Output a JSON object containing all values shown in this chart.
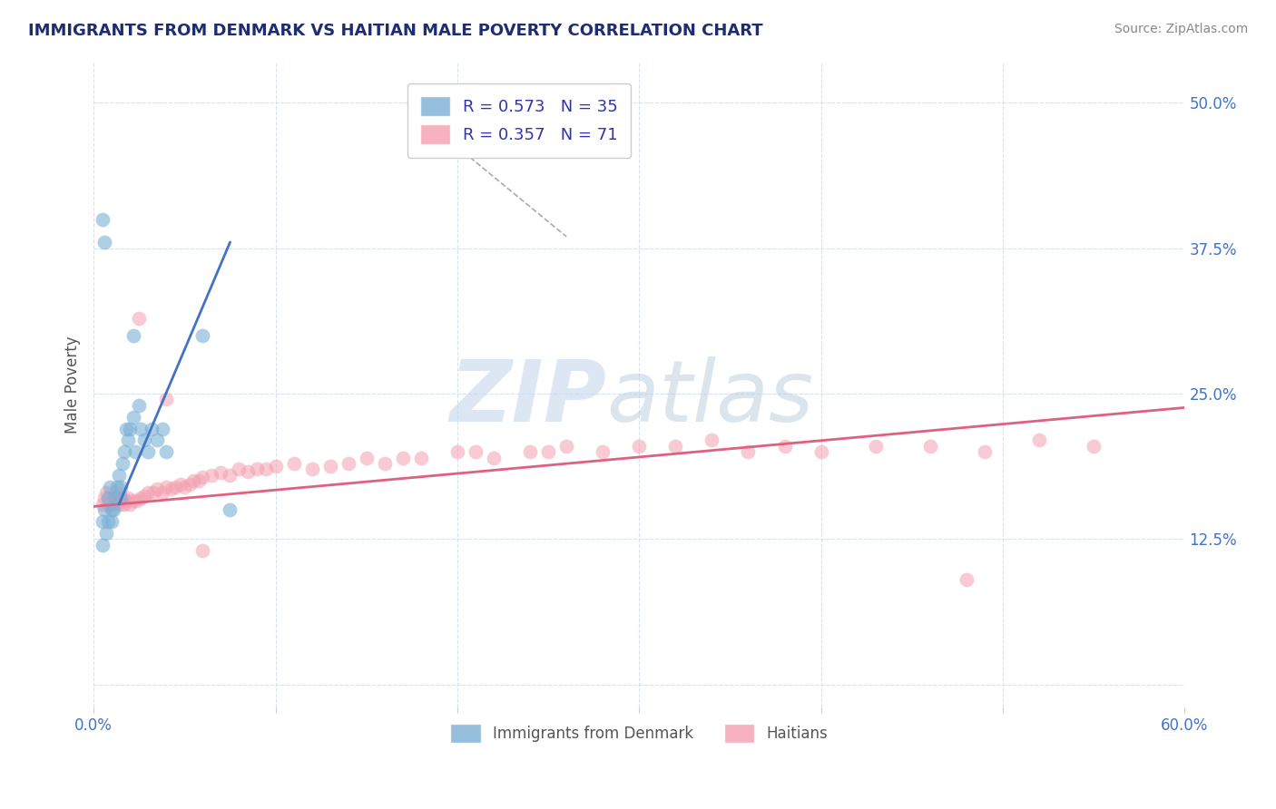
{
  "title": "IMMIGRANTS FROM DENMARK VS HAITIAN MALE POVERTY CORRELATION CHART",
  "source_text": "Source: ZipAtlas.com",
  "ylabel": "Male Poverty",
  "xlim": [
    0.0,
    0.6
  ],
  "ylim": [
    -0.02,
    0.535
  ],
  "yticks": [
    0.0,
    0.125,
    0.25,
    0.375,
    0.5
  ],
  "ytick_labels": [
    "",
    "12.5%",
    "25.0%",
    "37.5%",
    "50.0%"
  ],
  "xticks": [
    0.0,
    0.1,
    0.2,
    0.3,
    0.4,
    0.5,
    0.6
  ],
  "xtick_labels": [
    "0.0%",
    "",
    "",
    "",
    "",
    "",
    "60.0%"
  ],
  "legend_r1": "R = 0.573   N = 35",
  "legend_r2": "R = 0.357   N = 71",
  "legend_label1": "Immigrants from Denmark",
  "legend_label2": "Haitians",
  "blue_color": "#7BAFD4",
  "pink_color": "#F4A0B0",
  "blue_line_color": "#4472C4",
  "pink_line_color": "#E06080",
  "title_color": "#1F2D6E",
  "axis_label_color": "#4472C4",
  "ylabel_color": "#555555",
  "source_color": "#888888",
  "watermark_color": "#C5D8EC",
  "background_color": "#FFFFFF",
  "grid_color": "#D0DFF0",
  "legend_text_color": "#3333AA",
  "blue_dots_x": [
    0.005,
    0.005,
    0.006,
    0.007,
    0.008,
    0.008,
    0.009,
    0.01,
    0.01,
    0.011,
    0.012,
    0.013,
    0.014,
    0.015,
    0.015,
    0.016,
    0.017,
    0.018,
    0.019,
    0.02,
    0.022,
    0.023,
    0.025,
    0.026,
    0.028,
    0.03,
    0.032,
    0.035,
    0.038,
    0.04,
    0.005,
    0.006,
    0.022,
    0.06,
    0.075
  ],
  "blue_dots_y": [
    0.14,
    0.12,
    0.15,
    0.13,
    0.14,
    0.16,
    0.17,
    0.15,
    0.14,
    0.15,
    0.16,
    0.17,
    0.18,
    0.16,
    0.17,
    0.19,
    0.2,
    0.22,
    0.21,
    0.22,
    0.23,
    0.2,
    0.24,
    0.22,
    0.21,
    0.2,
    0.22,
    0.21,
    0.22,
    0.2,
    0.4,
    0.38,
    0.3,
    0.3,
    0.15
  ],
  "pink_dots_x": [
    0.005,
    0.006,
    0.007,
    0.008,
    0.009,
    0.01,
    0.011,
    0.012,
    0.013,
    0.014,
    0.015,
    0.016,
    0.017,
    0.018,
    0.019,
    0.02,
    0.022,
    0.024,
    0.026,
    0.028,
    0.03,
    0.033,
    0.035,
    0.038,
    0.04,
    0.043,
    0.045,
    0.048,
    0.05,
    0.053,
    0.055,
    0.058,
    0.06,
    0.065,
    0.07,
    0.075,
    0.08,
    0.085,
    0.09,
    0.095,
    0.1,
    0.11,
    0.12,
    0.13,
    0.14,
    0.15,
    0.16,
    0.17,
    0.18,
    0.2,
    0.21,
    0.22,
    0.24,
    0.25,
    0.26,
    0.28,
    0.3,
    0.32,
    0.34,
    0.36,
    0.38,
    0.4,
    0.43,
    0.46,
    0.49,
    0.52,
    0.55,
    0.025,
    0.04,
    0.06,
    0.48
  ],
  "pink_dots_y": [
    0.155,
    0.16,
    0.165,
    0.155,
    0.16,
    0.155,
    0.16,
    0.165,
    0.155,
    0.158,
    0.155,
    0.16,
    0.155,
    0.158,
    0.16,
    0.155,
    0.158,
    0.158,
    0.16,
    0.162,
    0.165,
    0.165,
    0.168,
    0.165,
    0.17,
    0.168,
    0.17,
    0.172,
    0.17,
    0.172,
    0.175,
    0.175,
    0.178,
    0.18,
    0.182,
    0.18,
    0.185,
    0.183,
    0.185,
    0.185,
    0.188,
    0.19,
    0.185,
    0.188,
    0.19,
    0.195,
    0.19,
    0.195,
    0.195,
    0.2,
    0.2,
    0.195,
    0.2,
    0.2,
    0.205,
    0.2,
    0.205,
    0.205,
    0.21,
    0.2,
    0.205,
    0.2,
    0.205,
    0.205,
    0.2,
    0.21,
    0.205,
    0.315,
    0.245,
    0.115,
    0.09
  ],
  "blue_trendline_x": [
    0.014,
    0.075
  ],
  "blue_trendline_y": [
    0.155,
    0.38
  ],
  "pink_trendline_x": [
    0.0,
    0.6
  ],
  "pink_trendline_y": [
    0.153,
    0.238
  ],
  "dashed_line_x": [
    0.19,
    0.26
  ],
  "dashed_line_y": [
    0.475,
    0.385
  ]
}
